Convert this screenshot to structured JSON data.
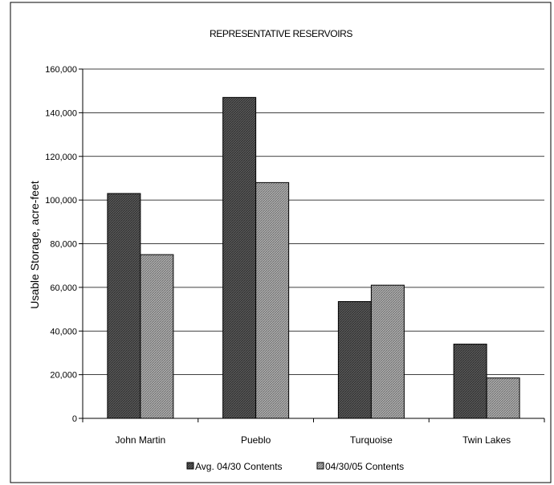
{
  "chart_data": {
    "type": "bar",
    "title": "REPRESENTATIVE RESERVOIRS",
    "xlabel": "",
    "ylabel": "Usable Storage, acre-feet",
    "categories": [
      "John Martin",
      "Pueblo",
      "Turquoise",
      "Twin Lakes"
    ],
    "series": [
      {
        "name": "Avg. 04/30 Contents",
        "values": [
          103000,
          147000,
          53500,
          34000
        ],
        "color": "#4a4a4a"
      },
      {
        "name": "04/30/05 Contents",
        "values": [
          75000,
          108000,
          61000,
          18500
        ],
        "color": "#9a9a9a"
      }
    ],
    "ylim": [
      0,
      160000
    ],
    "yticks": [
      0,
      20000,
      40000,
      60000,
      80000,
      100000,
      120000,
      140000,
      160000
    ],
    "ytick_labels": [
      "0",
      "20,000",
      "40,000",
      "60,000",
      "80,000",
      "100,000",
      "120,000",
      "140,000",
      "160,000"
    ],
    "grid": true,
    "legend_position": "bottom"
  }
}
